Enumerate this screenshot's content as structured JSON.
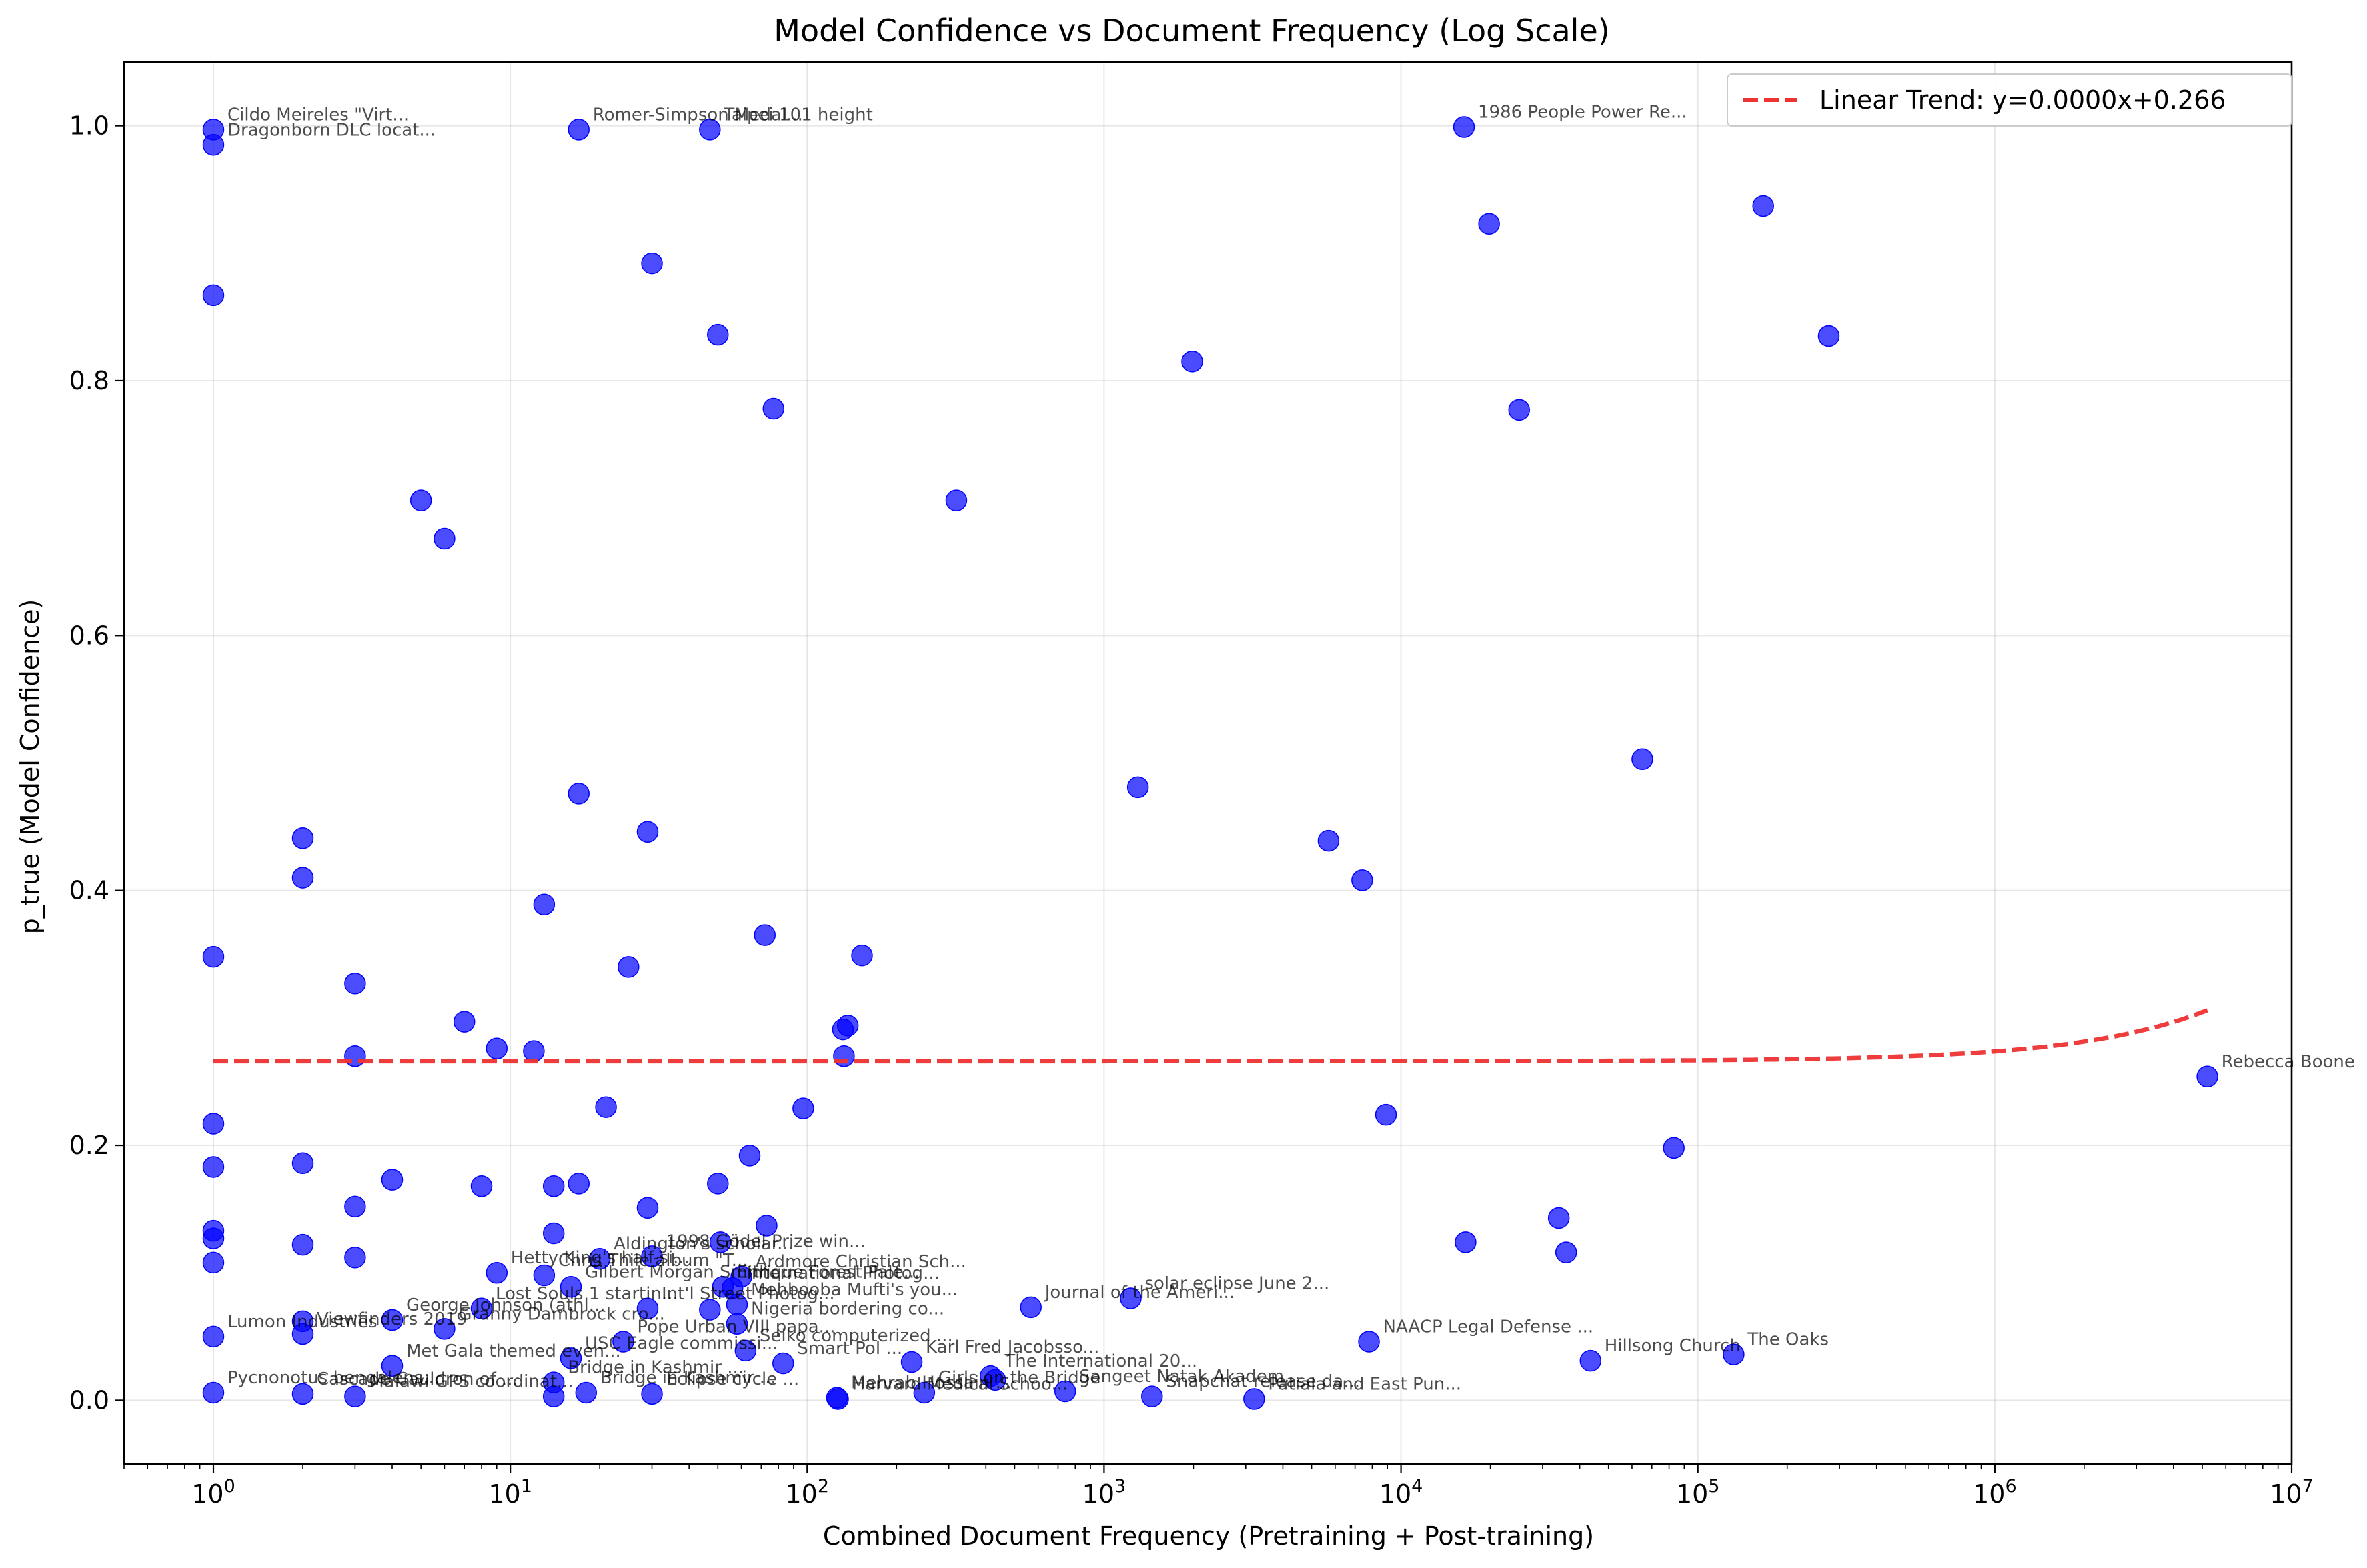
{
  "chart_data": {
    "type": "scatter",
    "title": "Model Confidence vs Document Frequency (Log Scale)",
    "xlabel": "Combined Document Frequency (Pretraining + Post-training)",
    "ylabel": "p_true (Model Confidence)",
    "x_scale": "log",
    "xlim": [
      0.5,
      10000000
    ],
    "ylim": [
      -0.05,
      1.05
    ],
    "x_ticks": [
      {
        "value": 1,
        "base": "10",
        "exp": "0"
      },
      {
        "value": 10,
        "base": "10",
        "exp": "1"
      },
      {
        "value": 100,
        "base": "10",
        "exp": "2"
      },
      {
        "value": 1000,
        "base": "10",
        "exp": "3"
      },
      {
        "value": 10000,
        "base": "10",
        "exp": "4"
      },
      {
        "value": 100000,
        "base": "10",
        "exp": "5"
      },
      {
        "value": 1000000,
        "base": "10",
        "exp": "6"
      },
      {
        "value": 10000000,
        "base": "10",
        "exp": "7"
      }
    ],
    "y_ticks": [
      0.0,
      0.2,
      0.4,
      0.6,
      0.8,
      1.0
    ],
    "y_tick_labels": [
      "0.0",
      "0.2",
      "0.4",
      "0.6",
      "0.8",
      "1.0"
    ],
    "grid": true,
    "legend_position": "top-right",
    "point_color": "#0000ff",
    "trend_color": "#ee3333",
    "trend": {
      "label": "Linear Trend: y=0.0000x+0.266",
      "slope": 7.7e-09,
      "intercept": 0.266,
      "x_range": [
        1,
        5200000
      ]
    },
    "points": [
      {
        "x": 1,
        "y": 0.997,
        "label": "Cildo Meireles \"Virt..."
      },
      {
        "x": 1,
        "y": 0.985,
        "label": "Dragonborn DLC locat..."
      },
      {
        "x": 1,
        "y": 0.867
      },
      {
        "x": 1,
        "y": 0.348
      },
      {
        "x": 1,
        "y": 0.217
      },
      {
        "x": 1,
        "y": 0.183
      },
      {
        "x": 1,
        "y": 0.133
      },
      {
        "x": 1,
        "y": 0.127
      },
      {
        "x": 1,
        "y": 0.108
      },
      {
        "x": 1,
        "y": 0.05,
        "label": "Lumon Industries"
      },
      {
        "x": 1,
        "y": 0.006,
        "label": "Pycnonotus bengalens..."
      },
      {
        "x": 2,
        "y": 0.441
      },
      {
        "x": 2,
        "y": 0.41
      },
      {
        "x": 2,
        "y": 0.186
      },
      {
        "x": 2,
        "y": 0.122
      },
      {
        "x": 2,
        "y": 0.062
      },
      {
        "x": 2,
        "y": 0.052,
        "label": "Viewfinders 2019"
      },
      {
        "x": 2,
        "y": 0.005,
        "label": "Cascade Cauldron of ..."
      },
      {
        "x": 3,
        "y": 0.327
      },
      {
        "x": 3,
        "y": 0.27
      },
      {
        "x": 3,
        "y": 0.152
      },
      {
        "x": 3,
        "y": 0.112
      },
      {
        "x": 3,
        "y": 0.003,
        "label": "Malawi GPS coordinat..."
      },
      {
        "x": 4,
        "y": 0.173
      },
      {
        "x": 4,
        "y": 0.063,
        "label": "George Johnson (athl..."
      },
      {
        "x": 4,
        "y": 0.027,
        "label": "Met Gala themed even..."
      },
      {
        "x": 5,
        "y": 0.706
      },
      {
        "x": 6,
        "y": 0.676
      },
      {
        "x": 6,
        "y": 0.056,
        "label": "Granny Dambrock cro..."
      },
      {
        "x": 7,
        "y": 0.297
      },
      {
        "x": 8,
        "y": 0.168
      },
      {
        "x": 8,
        "y": 0.072,
        "label": "Lost Souls 1 startin..."
      },
      {
        "x": 9,
        "y": 0.276
      },
      {
        "x": 9,
        "y": 0.1,
        "label": "Hetty King's half-si..."
      },
      {
        "x": 12,
        "y": 0.274
      },
      {
        "x": 13,
        "y": 0.389
      },
      {
        "x": 13,
        "y": 0.098,
        "label": "Chris Thile album \"T..."
      },
      {
        "x": 14,
        "y": 0.168
      },
      {
        "x": 14,
        "y": 0.131
      },
      {
        "x": 14,
        "y": 0.014,
        "label": "Bridge in Kashmir ..."
      },
      {
        "x": 14,
        "y": 0.003
      },
      {
        "x": 16,
        "y": 0.089,
        "label": "Gilbert Morgan Smith..."
      },
      {
        "x": 16,
        "y": 0.033,
        "label": "USC Eagle commissi..."
      },
      {
        "x": 17,
        "y": 0.997,
        "label": "Romer-Simpson Medal..."
      },
      {
        "x": 17,
        "y": 0.476
      },
      {
        "x": 17,
        "y": 0.17
      },
      {
        "x": 18,
        "y": 0.006,
        "label": "Bridge in Kashmir ..."
      },
      {
        "x": 20,
        "y": 0.111,
        "label": "Aldington's scholar..."
      },
      {
        "x": 21,
        "y": 0.23
      },
      {
        "x": 24,
        "y": 0.046,
        "label": "Pope Urban VIII papa..."
      },
      {
        "x": 25,
        "y": 0.34
      },
      {
        "x": 29,
        "y": 0.446
      },
      {
        "x": 29,
        "y": 0.151
      },
      {
        "x": 29,
        "y": 0.072,
        "label": "Int'l Street Photog..."
      },
      {
        "x": 30,
        "y": 0.892
      },
      {
        "x": 30,
        "y": 0.113,
        "label": "1998 Gödel Prize win..."
      },
      {
        "x": 30,
        "y": 0.005,
        "label": "Eclipse cycle ..."
      },
      {
        "x": 47,
        "y": 0.997,
        "label": "Taipei 101 height"
      },
      {
        "x": 47,
        "y": 0.071
      },
      {
        "x": 50,
        "y": 0.836
      },
      {
        "x": 50,
        "y": 0.17
      },
      {
        "x": 51,
        "y": 0.124
      },
      {
        "x": 52,
        "y": 0.089,
        "label": "Enrique Forest Pale..."
      },
      {
        "x": 56,
        "y": 0.088,
        "label": "International Photog..."
      },
      {
        "x": 58,
        "y": 0.075,
        "label": "Mehbooba Mufti's you..."
      },
      {
        "x": 58,
        "y": 0.06,
        "label": "Nigeria bordering co..."
      },
      {
        "x": 60,
        "y": 0.097,
        "label": "Ardmore Christian Sch..."
      },
      {
        "x": 62,
        "y": 0.039,
        "label": "Seiko computerized ..."
      },
      {
        "x": 64,
        "y": 0.192
      },
      {
        "x": 72,
        "y": 0.365
      },
      {
        "x": 73,
        "y": 0.137
      },
      {
        "x": 77,
        "y": 0.778
      },
      {
        "x": 83,
        "y": 0.029,
        "label": "Smart Pol ..."
      },
      {
        "x": 97,
        "y": 0.229
      },
      {
        "x": 126,
        "y": 0.002,
        "label": "Mehrab Hossain ..."
      },
      {
        "x": 127,
        "y": 0.001,
        "label": "Harvard Medical Schoo..."
      },
      {
        "x": 132,
        "y": 0.291
      },
      {
        "x": 133,
        "y": 0.27
      },
      {
        "x": 137,
        "y": 0.294
      },
      {
        "x": 153,
        "y": 0.349
      },
      {
        "x": 225,
        "y": 0.03,
        "label": "Karl Fred Jacobsso..."
      },
      {
        "x": 248,
        "y": 0.006,
        "label": "Girls on the Bridge"
      },
      {
        "x": 318,
        "y": 0.706
      },
      {
        "x": 415,
        "y": 0.019,
        "label": "The International 20..."
      },
      {
        "x": 430,
        "y": 0.016
      },
      {
        "x": 567,
        "y": 0.073,
        "label": "Journal of the Ameri..."
      },
      {
        "x": 740,
        "y": 0.007,
        "label": "Sangeet Natak Akadem..."
      },
      {
        "x": 1230,
        "y": 0.08,
        "label": "solar eclipse June 2..."
      },
      {
        "x": 1300,
        "y": 0.481
      },
      {
        "x": 1450,
        "y": 0.003,
        "label": "Snapchat release da..."
      },
      {
        "x": 1980,
        "y": 0.815
      },
      {
        "x": 3200,
        "y": 0.001,
        "label": "Patiala and East Pun..."
      },
      {
        "x": 5700,
        "y": 0.439
      },
      {
        "x": 7400,
        "y": 0.408
      },
      {
        "x": 7800,
        "y": 0.046,
        "label": "NAACP Legal Defense ..."
      },
      {
        "x": 8900,
        "y": 0.224
      },
      {
        "x": 16300,
        "y": 0.999,
        "label": "1986 People Power Re..."
      },
      {
        "x": 16500,
        "y": 0.124
      },
      {
        "x": 19800,
        "y": 0.923
      },
      {
        "x": 25000,
        "y": 0.777
      },
      {
        "x": 34000,
        "y": 0.143
      },
      {
        "x": 36000,
        "y": 0.116
      },
      {
        "x": 43500,
        "y": 0.031,
        "label": "Hillsong Church"
      },
      {
        "x": 65000,
        "y": 0.503
      },
      {
        "x": 83000,
        "y": 0.198
      },
      {
        "x": 132000,
        "y": 0.036,
        "label": "The Oaks"
      },
      {
        "x": 166000,
        "y": 0.937
      },
      {
        "x": 276000,
        "y": 0.835
      },
      {
        "x": 5200000,
        "y": 0.254,
        "label": "Rebecca Boone"
      }
    ]
  }
}
